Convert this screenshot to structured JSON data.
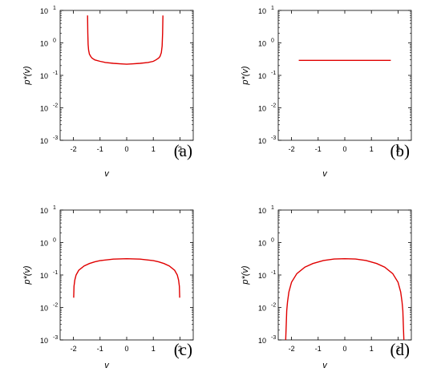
{
  "chart_data": [
    {
      "type": "line",
      "panel_label": "(a)",
      "xlabel": "v",
      "ylabel": "p*(v)",
      "xlim": [
        -2.5,
        2.5
      ],
      "ylim": [
        0.001,
        10
      ],
      "y_scale": "log",
      "x_ticks": [
        "-2",
        "-1",
        "0",
        "1",
        "2"
      ],
      "y_ticks": [
        {
          "base": "10",
          "exp": "-3"
        },
        {
          "base": "10",
          "exp": "-2"
        },
        {
          "base": "10",
          "exp": "-1"
        },
        {
          "base": "10",
          "exp": "0"
        },
        {
          "base": "10",
          "exp": "1"
        }
      ],
      "line_color": "#e00000",
      "x": [
        -1.47,
        -1.46,
        -1.45,
        -1.43,
        -1.4,
        -1.35,
        -1.3,
        -1.2,
        -1.0,
        -0.8,
        -0.5,
        -0.2,
        0.0,
        0.2,
        0.5,
        0.8,
        1.0,
        1.1,
        1.2,
        1.25,
        1.3,
        1.33,
        1.35,
        1.36
      ],
      "y": [
        7.0,
        2.0,
        0.9,
        0.6,
        0.45,
        0.38,
        0.34,
        0.3,
        0.27,
        0.25,
        0.235,
        0.225,
        0.22,
        0.225,
        0.235,
        0.25,
        0.27,
        0.3,
        0.34,
        0.38,
        0.5,
        0.8,
        2.0,
        7.0
      ]
    },
    {
      "type": "line",
      "panel_label": "(b)",
      "xlabel": "v",
      "ylabel": "p*(v)",
      "xlim": [
        -2.5,
        2.5
      ],
      "ylim": [
        0.001,
        10
      ],
      "y_scale": "log",
      "x_ticks": [
        "-2",
        "-1",
        "0",
        "1",
        "2"
      ],
      "y_ticks": [
        {
          "base": "10",
          "exp": "-3"
        },
        {
          "base": "10",
          "exp": "-2"
        },
        {
          "base": "10",
          "exp": "-1"
        },
        {
          "base": "10",
          "exp": "0"
        },
        {
          "base": "10",
          "exp": "1"
        }
      ],
      "line_color": "#e00000",
      "x": [
        -1.73,
        1.73
      ],
      "y": [
        0.29,
        0.29
      ]
    },
    {
      "type": "line",
      "panel_label": "(c)",
      "xlabel": "v",
      "ylabel": "p*(v)",
      "xlim": [
        -2.5,
        2.5
      ],
      "ylim": [
        0.001,
        10
      ],
      "y_scale": "log",
      "x_ticks": [
        "-2",
        "-1",
        "0",
        "1",
        "2"
      ],
      "y_ticks": [
        {
          "base": "10",
          "exp": "-3"
        },
        {
          "base": "10",
          "exp": "-2"
        },
        {
          "base": "10",
          "exp": "-1"
        },
        {
          "base": "10",
          "exp": "0"
        },
        {
          "base": "10",
          "exp": "1"
        }
      ],
      "line_color": "#e00000",
      "x": [
        -1.99,
        -1.98,
        -1.95,
        -1.9,
        -1.8,
        -1.6,
        -1.4,
        -1.2,
        -1.0,
        -0.5,
        0.0,
        0.5,
        1.0,
        1.2,
        1.4,
        1.6,
        1.8,
        1.9,
        1.95,
        1.98,
        1.99
      ],
      "y": [
        0.02,
        0.045,
        0.07,
        0.1,
        0.14,
        0.19,
        0.226,
        0.254,
        0.276,
        0.308,
        0.318,
        0.308,
        0.276,
        0.254,
        0.226,
        0.19,
        0.14,
        0.1,
        0.07,
        0.045,
        0.02
      ]
    },
    {
      "type": "line",
      "panel_label": "(d)",
      "xlabel": "v",
      "ylabel": "p*(v)",
      "xlim": [
        -2.5,
        2.5
      ],
      "ylim": [
        0.001,
        10
      ],
      "y_scale": "log",
      "x_ticks": [
        "-2",
        "-1",
        "0",
        "1",
        "2"
      ],
      "y_ticks": [
        {
          "base": "10",
          "exp": "-3"
        },
        {
          "base": "10",
          "exp": "-2"
        },
        {
          "base": "10",
          "exp": "-1"
        },
        {
          "base": "10",
          "exp": "0"
        },
        {
          "base": "10",
          "exp": "1"
        }
      ],
      "line_color": "#e00000",
      "x": [
        -2.22,
        -2.2,
        -2.18,
        -2.15,
        -2.1,
        -2.0,
        -1.8,
        -1.5,
        -1.2,
        -0.8,
        -0.4,
        0.0,
        0.4,
        0.8,
        1.2,
        1.5,
        1.8,
        2.0,
        2.1,
        2.15,
        2.18,
        2.2,
        2.22
      ],
      "y": [
        0.001,
        0.003,
        0.008,
        0.015,
        0.03,
        0.06,
        0.11,
        0.175,
        0.225,
        0.28,
        0.31,
        0.318,
        0.31,
        0.28,
        0.225,
        0.175,
        0.11,
        0.06,
        0.03,
        0.015,
        0.008,
        0.003,
        0.001
      ]
    }
  ]
}
